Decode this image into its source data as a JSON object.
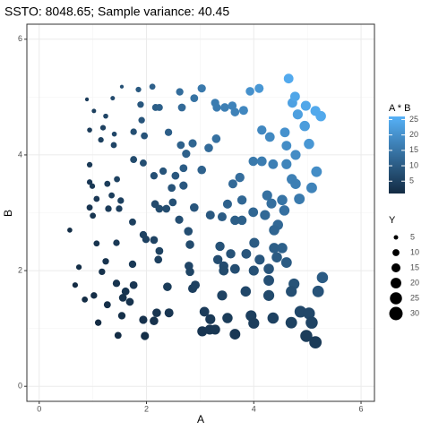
{
  "chart_data": {
    "type": "scatter",
    "title": "SSTO: 8048.65; Sample variance: 40.45",
    "x_label": "A",
    "y_label": "B",
    "xlim": [
      -0.23,
      6.25
    ],
    "ylim": [
      -0.26,
      6.26
    ],
    "xticks": [
      0,
      2,
      4,
      6
    ],
    "yticks": [
      0,
      2,
      4,
      6
    ],
    "x_minor_ticks": [
      1,
      3,
      5
    ],
    "y_minor_ticks": [
      1,
      3,
      5
    ],
    "grid": true,
    "color_title": "A * B",
    "colorlim": [
      1,
      26
    ],
    "color_ticks": [
      5,
      10,
      15,
      20,
      25
    ],
    "colors": [
      "#132B43",
      "#56B1F7"
    ],
    "size_title": "Y",
    "size_ticks": [
      5,
      10,
      15,
      20,
      25,
      30
    ],
    "legend_position": "right",
    "x": [
      0.89,
      1.02,
      1.37,
      1.54,
      1.85,
      2.11,
      1.24,
      0.94,
      1.19,
      1.4,
      1.89,
      1.91,
      2.17,
      2.24,
      2.62,
      2.89,
      3.03,
      2.66,
      3.31,
      3.28,
      3.46,
      3.65,
      3.6,
      3.81,
      3.93,
      4.1,
      4.72,
      4.77,
      4.65,
      4.97,
      5.15,
      5.25,
      4.82,
      1.76,
      1.96,
      1.15,
      1.39,
      1.76,
      1.94,
      2.41,
      2.64,
      2.74,
      2.86,
      3.16,
      3.3,
      4.15,
      4.3,
      4.58,
      4.61,
      4.78,
      5.03,
      4.95,
      0.94,
      0.94,
      0.99,
      1.27,
      1.45,
      1.35,
      1.52,
      2.14,
      2.31,
      2.54,
      2.69,
      2.47,
      2.69,
      3.03,
      3.61,
      3.74,
      3.99,
      4.15,
      4.36,
      4.61,
      4.71,
      4.78,
      5.17,
      5.08,
      1.07,
      0.94,
      1.0,
      1.29,
      1.49,
      1.74,
      2.16,
      2.37,
      2.24,
      2.49,
      2.89,
      2.61,
      3.19,
      3.41,
      3.51,
      3.78,
      3.99,
      4.25,
      4.33,
      4.53,
      4.57,
      4.45,
      4.85,
      3.78,
      3.65,
      4.21,
      0.57,
      1.07,
      1.44,
      1.94,
      1.99,
      2.14,
      2.24,
      2.78,
      2.81,
      3.37,
      3.57,
      3.86,
      4.01,
      4.38,
      4.53,
      4.38,
      0.74,
      1.24,
      1.17,
      1.74,
      1.76,
      2.22,
      2.79,
      2.81,
      3.33,
      3.44,
      3.65,
      3.44,
      4.0,
      4.28,
      4.11,
      4.43,
      4.61,
      4.28,
      4.75,
      5.28,
      0.67,
      0.85,
      1.02,
      1.27,
      1.44,
      1.61,
      1.56,
      1.69,
      2.39,
      2.86,
      2.91,
      3.08,
      3.41,
      3.85,
      4.28,
      4.7,
      5.2,
      1.1,
      1.54,
      1.47,
      1.94,
      1.97,
      2.19,
      2.42,
      2.14,
      3.19,
      3.04,
      3.18,
      3.28,
      3.51,
      3.65,
      3.95,
      4.0,
      4.36,
      4.7,
      4.87,
      5.03,
      5.08,
      4.98,
      5.15
    ],
    "y": [
      4.96,
      4.76,
      4.98,
      5.18,
      5.13,
      5.18,
      4.67,
      4.43,
      4.47,
      4.36,
      4.87,
      4.6,
      4.82,
      4.82,
      5.09,
      4.98,
      5.15,
      4.82,
      4.82,
      4.9,
      4.82,
      4.74,
      4.85,
      4.77,
      5.1,
      5.15,
      4.9,
      5.01,
      5.32,
      4.85,
      4.76,
      4.67,
      4.7,
      4.4,
      4.33,
      4.26,
      4.17,
      3.92,
      3.86,
      4.39,
      4.17,
      4.02,
      4.2,
      4.12,
      4.28,
      4.43,
      4.31,
      4.39,
      4.16,
      4.0,
      4.19,
      4.5,
      3.83,
      3.53,
      3.46,
      3.5,
      3.58,
      3.3,
      3.21,
      3.64,
      3.72,
      3.64,
      3.77,
      3.43,
      3.47,
      3.74,
      3.5,
      3.61,
      3.89,
      3.89,
      3.84,
      3.84,
      3.58,
      3.5,
      3.71,
      3.43,
      3.24,
      3.09,
      2.95,
      3.07,
      3.07,
      2.84,
      3.15,
      3.07,
      3.07,
      3.18,
      3.09,
      2.88,
      2.96,
      2.93,
      3.15,
      3.22,
      3.01,
      3.3,
      3.16,
      3.22,
      3.04,
      2.79,
      3.24,
      2.87,
      2.87,
      2.96,
      2.7,
      2.47,
      2.48,
      2.62,
      2.54,
      2.53,
      2.34,
      2.68,
      2.45,
      2.42,
      2.29,
      2.29,
      2.48,
      2.7,
      2.39,
      2.39,
      2.06,
      2.16,
      1.98,
      2.11,
      1.75,
      2.19,
      2.08,
      1.98,
      2.19,
      2.08,
      2.03,
      2.0,
      2.0,
      2.03,
      2.19,
      2.23,
      2.14,
      1.83,
      1.77,
      1.88,
      1.75,
      1.5,
      1.57,
      1.41,
      1.78,
      1.64,
      1.53,
      1.46,
      1.72,
      1.69,
      1.75,
      1.29,
      1.57,
      1.64,
      1.57,
      1.64,
      1.64,
      1.1,
      1.22,
      0.88,
      1.15,
      0.87,
      1.27,
      1.27,
      1.13,
      1.16,
      0.95,
      0.98,
      0.98,
      1.18,
      0.9,
      1.22,
      1.09,
      1.18,
      1.1,
      1.29,
      1.26,
      1.1,
      0.87,
      0.76
    ],
    "size_values": [
      4,
      5,
      5,
      4,
      7,
      8,
      6,
      6,
      7,
      6,
      9,
      9,
      10,
      10,
      11,
      12,
      13,
      12,
      13,
      13,
      14,
      14,
      14,
      15,
      14,
      15,
      17,
      17,
      17,
      18,
      18,
      19,
      18,
      9,
      10,
      7,
      8,
      10,
      10,
      11,
      12,
      13,
      13,
      14,
      14,
      16,
      17,
      17,
      17,
      18,
      19,
      19,
      7,
      7,
      7,
      8,
      8,
      8,
      9,
      11,
      11,
      12,
      12,
      12,
      13,
      14,
      15,
      16,
      16,
      17,
      17,
      18,
      19,
      19,
      20,
      20,
      8,
      8,
      8,
      9,
      9,
      10,
      12,
      12,
      12,
      12,
      14,
      13,
      15,
      15,
      15,
      16,
      17,
      18,
      18,
      19,
      19,
      19,
      20,
      16,
      16,
      18,
      6,
      8,
      9,
      11,
      11,
      12,
      12,
      14,
      14,
      16,
      16,
      17,
      18,
      19,
      19,
      19,
      7,
      9,
      9,
      11,
      12,
      12,
      14,
      14,
      16,
      16,
      17,
      17,
      18,
      19,
      18,
      19,
      20,
      20,
      21,
      22,
      7,
      8,
      9,
      10,
      11,
      12,
      12,
      12,
      14,
      15,
      15,
      17,
      18,
      19,
      21,
      21,
      23,
      9,
      11,
      10,
      13,
      13,
      14,
      15,
      14,
      18,
      18,
      18,
      18,
      19,
      20,
      21,
      21,
      22,
      23,
      24,
      24,
      25,
      25,
      26
    ],
    "color_values": [
      4.4,
      4.9,
      6.8,
      8.0,
      9.5,
      10.9,
      5.8,
      4.2,
      5.3,
      6.1,
      9.2,
      8.8,
      10.5,
      10.8,
      13.3,
      14.4,
      15.6,
      12.8,
      16.0,
      16.1,
      16.7,
      17.3,
      17.5,
      18.2,
      20.0,
      21.1,
      23.1,
      23.9,
      24.7,
      24.1,
      24.5,
      24.5,
      22.7,
      7.7,
      8.5,
      4.9,
      5.8,
      6.9,
      7.5,
      10.6,
      11.0,
      11.0,
      12.0,
      13.0,
      14.1,
      18.4,
      18.5,
      20.1,
      19.2,
      19.1,
      21.1,
      22.3,
      3.6,
      3.3,
      3.4,
      4.4,
      5.2,
      4.5,
      4.9,
      7.8,
      8.6,
      9.2,
      10.1,
      8.5,
      9.3,
      11.3,
      12.6,
      13.5,
      15.5,
      16.1,
      16.7,
      17.7,
      16.9,
      16.7,
      19.2,
      17.4,
      3.5,
      2.9,
      3.0,
      4.0,
      4.6,
      4.9,
      6.8,
      7.3,
      6.9,
      7.9,
      8.9,
      7.5,
      9.4,
      10.0,
      11.1,
      12.2,
      12.0,
      14.0,
      13.7,
      14.6,
      13.9,
      12.4,
      15.7,
      10.8,
      10.5,
      12.5,
      1.5,
      2.6,
      3.6,
      5.1,
      5.1,
      5.4,
      5.2,
      7.5,
      6.9,
      8.2,
      8.2,
      8.8,
      9.9,
      11.8,
      10.8,
      10.5,
      1.5,
      2.7,
      2.3,
      3.7,
      3.1,
      4.9,
      5.8,
      5.6,
      7.3,
      7.2,
      7.4,
      6.9,
      8.0,
      8.7,
      9.0,
      9.9,
      9.9,
      7.8,
      8.4,
      9.9,
      1.2,
      1.3,
      1.6,
      1.8,
      2.6,
      2.6,
      2.4,
      2.5,
      4.1,
      4.8,
      5.1,
      4.0,
      5.4,
      6.3,
      6.7,
      7.7,
      8.5,
      1.2,
      1.9,
      1.3,
      2.2,
      1.7,
      2.8,
      3.1,
      2.4,
      3.7,
      2.9,
      3.1,
      3.2,
      4.1,
      3.3,
      4.8,
      4.4,
      5.1,
      5.2,
      6.3,
      6.3,
      5.6,
      4.3,
      3.9
    ]
  }
}
